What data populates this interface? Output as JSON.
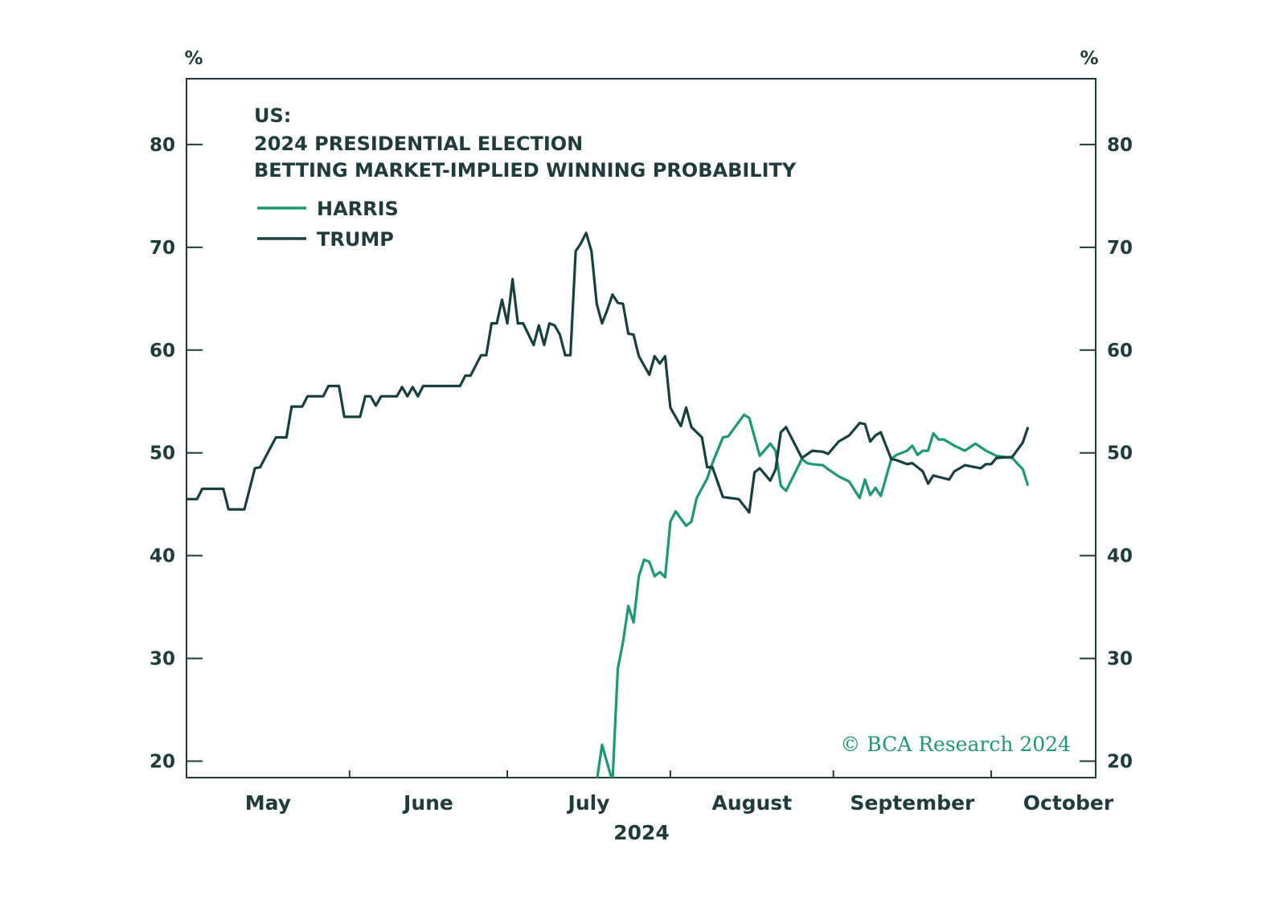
{
  "chart_data": {
    "type": "line",
    "title": [
      "US:",
      "2024 PRESIDENTIAL ELECTION",
      "BETTING MARKET-IMPLIED WINNING PROBABILITY"
    ],
    "ylabel_left": "%",
    "ylabel_right": "%",
    "xlabel": "2024",
    "x_tick_labels": [
      "May",
      "June",
      "July",
      "August",
      "September",
      "October"
    ],
    "y_ticks": [
      20,
      30,
      40,
      50,
      60,
      70,
      80
    ],
    "ylim": [
      18.4,
      86.4
    ],
    "xlim": [
      "2024-05-01",
      "2024-10-15"
    ],
    "grid": false,
    "legend_placement": "top-left",
    "copyright": "© BCA Research 2024",
    "series": [
      {
        "name": "HARRIS",
        "color": "#1a9a72",
        "points": [
          [
            "2024-07-18",
            18.0
          ],
          [
            "2024-07-19",
            21.6
          ],
          [
            "2024-07-21",
            18.0
          ],
          [
            "2024-07-22",
            29.0
          ],
          [
            "2024-07-23",
            31.6
          ],
          [
            "2024-07-24",
            35.1
          ],
          [
            "2024-07-25",
            33.5
          ],
          [
            "2024-07-26",
            38.0
          ],
          [
            "2024-07-27",
            39.6
          ],
          [
            "2024-07-28",
            39.4
          ],
          [
            "2024-07-29",
            38.0
          ],
          [
            "2024-07-30",
            38.4
          ],
          [
            "2024-07-31",
            37.9
          ],
          [
            "2024-08-01",
            43.3
          ],
          [
            "2024-08-02",
            44.3
          ],
          [
            "2024-08-04",
            42.9
          ],
          [
            "2024-08-05",
            43.3
          ],
          [
            "2024-08-06",
            45.6
          ],
          [
            "2024-08-08",
            47.5
          ],
          [
            "2024-08-09",
            49.0
          ],
          [
            "2024-08-11",
            51.5
          ],
          [
            "2024-08-12",
            51.6
          ],
          [
            "2024-08-15",
            53.7
          ],
          [
            "2024-08-16",
            53.4
          ],
          [
            "2024-08-18",
            49.7
          ],
          [
            "2024-08-20",
            50.9
          ],
          [
            "2024-08-21",
            50.2
          ],
          [
            "2024-08-22",
            46.8
          ],
          [
            "2024-08-23",
            46.3
          ],
          [
            "2024-08-26",
            49.4
          ],
          [
            "2024-08-27",
            49.0
          ],
          [
            "2024-08-28",
            48.9
          ],
          [
            "2024-08-30",
            48.8
          ],
          [
            "2024-08-31",
            48.4
          ],
          [
            "2024-09-02",
            47.7
          ],
          [
            "2024-09-04",
            47.2
          ],
          [
            "2024-09-06",
            45.6
          ],
          [
            "2024-09-07",
            47.4
          ],
          [
            "2024-09-08",
            45.9
          ],
          [
            "2024-09-09",
            46.6
          ],
          [
            "2024-09-10",
            45.8
          ],
          [
            "2024-09-12",
            49.4
          ],
          [
            "2024-09-13",
            49.8
          ],
          [
            "2024-09-15",
            50.2
          ],
          [
            "2024-09-16",
            50.7
          ],
          [
            "2024-09-17",
            49.8
          ],
          [
            "2024-09-18",
            50.2
          ],
          [
            "2024-09-19",
            50.2
          ],
          [
            "2024-09-20",
            51.9
          ],
          [
            "2024-09-21",
            51.3
          ],
          [
            "2024-09-22",
            51.3
          ],
          [
            "2024-09-24",
            50.7
          ],
          [
            "2024-09-26",
            50.2
          ],
          [
            "2024-09-28",
            50.9
          ],
          [
            "2024-09-30",
            50.2
          ],
          [
            "2024-10-02",
            49.7
          ],
          [
            "2024-10-05",
            49.5
          ],
          [
            "2024-10-07",
            48.4
          ],
          [
            "2024-10-08",
            46.8
          ]
        ]
      },
      {
        "name": "TRUMP",
        "color": "#173f3f",
        "points": [
          [
            "2024-05-01",
            45.5
          ],
          [
            "2024-05-03",
            45.5
          ],
          [
            "2024-05-04",
            46.5
          ],
          [
            "2024-05-08",
            46.5
          ],
          [
            "2024-05-09",
            44.5
          ],
          [
            "2024-05-12",
            44.5
          ],
          [
            "2024-05-14",
            48.5
          ],
          [
            "2024-05-15",
            48.6
          ],
          [
            "2024-05-18",
            51.5
          ],
          [
            "2024-05-20",
            51.5
          ],
          [
            "2024-05-21",
            54.5
          ],
          [
            "2024-05-23",
            54.5
          ],
          [
            "2024-05-24",
            55.5
          ],
          [
            "2024-05-27",
            55.5
          ],
          [
            "2024-05-28",
            56.5
          ],
          [
            "2024-05-30",
            56.5
          ],
          [
            "2024-05-31",
            53.5
          ],
          [
            "2024-06-03",
            53.5
          ],
          [
            "2024-06-04",
            55.5
          ],
          [
            "2024-06-05",
            55.5
          ],
          [
            "2024-06-06",
            54.6
          ],
          [
            "2024-06-07",
            55.5
          ],
          [
            "2024-06-10",
            55.5
          ],
          [
            "2024-06-11",
            56.4
          ],
          [
            "2024-06-12",
            55.5
          ],
          [
            "2024-06-13",
            56.4
          ],
          [
            "2024-06-14",
            55.5
          ],
          [
            "2024-06-15",
            56.5
          ],
          [
            "2024-06-22",
            56.5
          ],
          [
            "2024-06-23",
            57.5
          ],
          [
            "2024-06-24",
            57.5
          ],
          [
            "2024-06-26",
            59.5
          ],
          [
            "2024-06-27",
            59.5
          ],
          [
            "2024-06-28",
            62.6
          ],
          [
            "2024-06-29",
            62.6
          ],
          [
            "2024-06-30",
            64.9
          ],
          [
            "2024-07-01",
            62.6
          ],
          [
            "2024-07-02",
            66.9
          ],
          [
            "2024-07-03",
            62.6
          ],
          [
            "2024-07-04",
            62.6
          ],
          [
            "2024-07-06",
            60.5
          ],
          [
            "2024-07-07",
            62.4
          ],
          [
            "2024-07-08",
            60.5
          ],
          [
            "2024-07-09",
            62.6
          ],
          [
            "2024-07-10",
            62.4
          ],
          [
            "2024-07-11",
            61.5
          ],
          [
            "2024-07-12",
            59.5
          ],
          [
            "2024-07-13",
            59.5
          ],
          [
            "2024-07-14",
            69.6
          ],
          [
            "2024-07-15",
            70.4
          ],
          [
            "2024-07-16",
            71.4
          ],
          [
            "2024-07-17",
            69.6
          ],
          [
            "2024-07-18",
            64.5
          ],
          [
            "2024-07-19",
            62.6
          ],
          [
            "2024-07-20",
            63.9
          ],
          [
            "2024-07-21",
            65.4
          ],
          [
            "2024-07-22",
            64.6
          ],
          [
            "2024-07-23",
            64.5
          ],
          [
            "2024-07-24",
            61.6
          ],
          [
            "2024-07-25",
            61.5
          ],
          [
            "2024-07-26",
            59.4
          ],
          [
            "2024-07-28",
            57.6
          ],
          [
            "2024-07-29",
            59.4
          ],
          [
            "2024-07-30",
            58.7
          ],
          [
            "2024-07-31",
            59.4
          ],
          [
            "2024-08-01",
            54.4
          ],
          [
            "2024-08-03",
            52.6
          ],
          [
            "2024-08-04",
            54.4
          ],
          [
            "2024-08-05",
            52.5
          ],
          [
            "2024-08-07",
            51.5
          ],
          [
            "2024-08-08",
            48.6
          ],
          [
            "2024-08-09",
            48.6
          ],
          [
            "2024-08-11",
            45.7
          ],
          [
            "2024-08-14",
            45.5
          ],
          [
            "2024-08-16",
            44.2
          ],
          [
            "2024-08-17",
            48.1
          ],
          [
            "2024-08-18",
            48.5
          ],
          [
            "2024-08-20",
            47.3
          ],
          [
            "2024-08-21",
            48.4
          ],
          [
            "2024-08-22",
            52.0
          ],
          [
            "2024-08-23",
            52.5
          ],
          [
            "2024-08-26",
            49.5
          ],
          [
            "2024-08-28",
            50.2
          ],
          [
            "2024-08-30",
            50.1
          ],
          [
            "2024-08-31",
            49.9
          ],
          [
            "2024-09-02",
            51.1
          ],
          [
            "2024-09-04",
            51.7
          ],
          [
            "2024-09-06",
            52.9
          ],
          [
            "2024-09-07",
            52.8
          ],
          [
            "2024-09-08",
            51.1
          ],
          [
            "2024-09-09",
            51.7
          ],
          [
            "2024-09-10",
            52.0
          ],
          [
            "2024-09-12",
            49.4
          ],
          [
            "2024-09-13",
            49.3
          ],
          [
            "2024-09-15",
            48.9
          ],
          [
            "2024-09-16",
            49.0
          ],
          [
            "2024-09-18",
            48.2
          ],
          [
            "2024-09-19",
            47.0
          ],
          [
            "2024-09-20",
            47.8
          ],
          [
            "2024-09-23",
            47.4
          ],
          [
            "2024-09-24",
            48.2
          ],
          [
            "2024-09-26",
            48.8
          ],
          [
            "2024-09-29",
            48.5
          ],
          [
            "2024-09-30",
            48.9
          ],
          [
            "2024-10-01",
            48.9
          ],
          [
            "2024-10-02",
            49.5
          ],
          [
            "2024-10-05",
            49.6
          ],
          [
            "2024-10-07",
            51.0
          ],
          [
            "2024-10-08",
            52.5
          ]
        ]
      }
    ]
  }
}
